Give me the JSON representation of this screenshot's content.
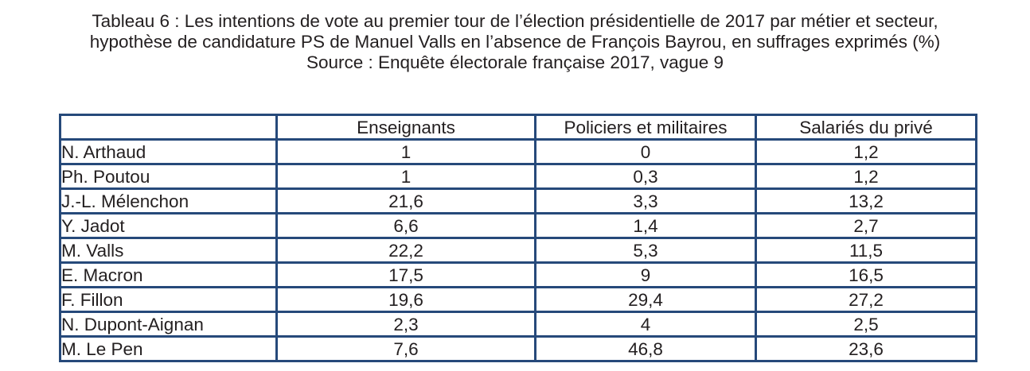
{
  "caption": {
    "line1": "Tableau 6 : Les intentions de vote au premier tour de l’élection présidentielle de 2017 par métier et secteur,",
    "line2": "hypothèse de candidature PS de Manuel Valls en l’absence de François Bayrou, en suffrages exprimés (%)",
    "line3": "Source : Enquête électorale française 2017, vague 9"
  },
  "table": {
    "corner": "",
    "columns": [
      "Enseignants",
      "Policiers et militaires",
      "Salariés du privé"
    ],
    "rows": [
      {
        "name": "N. Arthaud",
        "values": [
          "1",
          "0",
          "1,2"
        ]
      },
      {
        "name": "Ph. Poutou",
        "values": [
          "1",
          "0,3",
          "1,2"
        ]
      },
      {
        "name": "J.-L. Mélenchon",
        "values": [
          "21,6",
          "3,3",
          "13,2"
        ]
      },
      {
        "name": "Y. Jadot",
        "values": [
          "6,6",
          "1,4",
          "2,7"
        ]
      },
      {
        "name": "M. Valls",
        "values": [
          "22,2",
          "5,3",
          "11,5"
        ]
      },
      {
        "name": "E. Macron",
        "values": [
          "17,5",
          "9",
          "16,5"
        ]
      },
      {
        "name": "F. Fillon",
        "values": [
          "19,6",
          "29,4",
          "27,2"
        ]
      },
      {
        "name": "N. Dupont-Aignan",
        "values": [
          "2,3",
          "4",
          "2,5"
        ]
      },
      {
        "name": "M. Le Pen",
        "values": [
          "7,6",
          "46,8",
          "23,6"
        ]
      }
    ]
  },
  "colors": {
    "border": "#26497a",
    "text": "#231f20"
  }
}
